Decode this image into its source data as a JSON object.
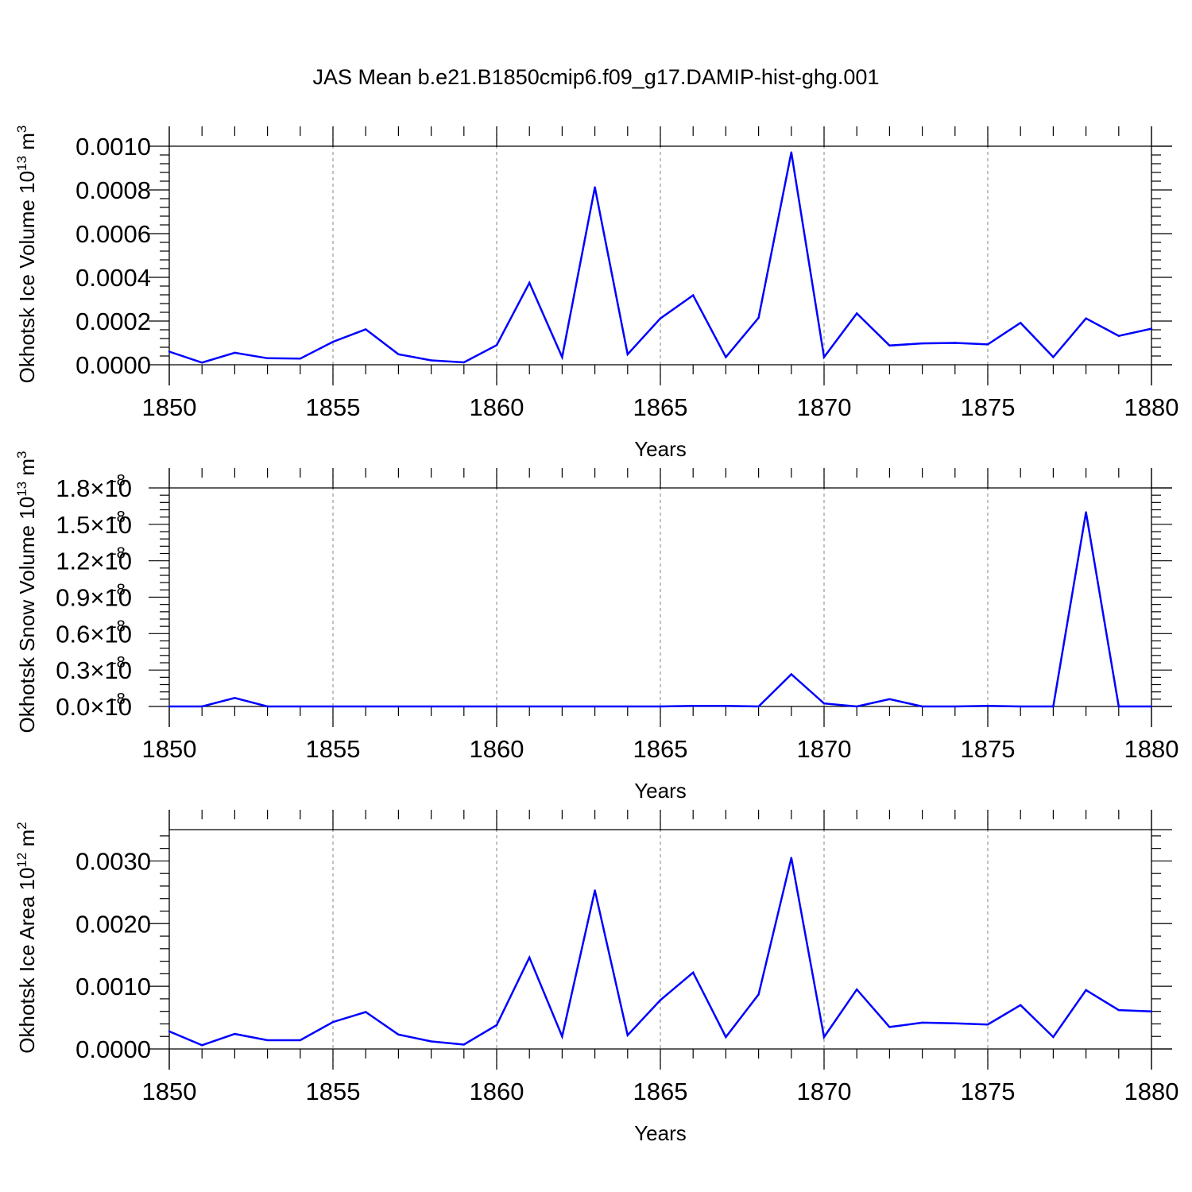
{
  "title": "JAS Mean b.e21.B1850cmip6.f09_g17.DAMIP-hist-ghg.001",
  "colors": {
    "series": "#0000ff",
    "axis": "#000000",
    "grid": "#999999"
  },
  "chart_data": [
    {
      "type": "line",
      "ylabel": "Okhotsk Ice Volume 10",
      "ylabel_exp": "13",
      "ylabel_unit": " m",
      "ylabel_unit_exp": "3",
      "xlabel": "Years",
      "xlim": [
        1850,
        1880
      ],
      "ylim": [
        0.0,
        0.001
      ],
      "y_ticks": [
        0.0,
        0.0002,
        0.0004,
        0.0006,
        0.0008,
        0.001
      ],
      "y_tick_labels": [
        "0.0000",
        "0.0002",
        "0.0004",
        "0.0006",
        "0.0008",
        "0.0010"
      ],
      "x_ticks": [
        1850,
        1855,
        1860,
        1865,
        1870,
        1875,
        1880
      ],
      "x": [
        1850,
        1851,
        1852,
        1853,
        1854,
        1855,
        1856,
        1857,
        1858,
        1859,
        1860,
        1861,
        1862,
        1863,
        1864,
        1865,
        1866,
        1867,
        1868,
        1869,
        1870,
        1871,
        1872,
        1873,
        1874,
        1875,
        1876,
        1877,
        1878,
        1879,
        1880
      ],
      "values": [
        6e-05,
        1e-05,
        5.5e-05,
        3e-05,
        2.8e-05,
        0.000105,
        0.000162,
        4.8e-05,
        2e-05,
        1.1e-05,
        9e-05,
        0.000375,
        3.5e-05,
        0.000812,
        4.8e-05,
        0.000212,
        0.000318,
        3.5e-05,
        0.000215,
        0.000972,
        3.5e-05,
        0.000235,
        8.8e-05,
        9.8e-05,
        0.0001,
        9.3e-05,
        0.000192,
        3.5e-05,
        0.000212,
        0.000132,
        0.000165
      ]
    },
    {
      "type": "line",
      "ylabel": "Okhotsk Snow Volume 10",
      "ylabel_exp": "13",
      "ylabel_unit": " m",
      "ylabel_unit_exp": "3",
      "xlabel": "Years",
      "xlim": [
        1850,
        1880
      ],
      "ylim": [
        0.0,
        1.8e-08
      ],
      "y_ticks": [
        0.0,
        3e-09,
        6e-09,
        9e-09,
        1.2e-08,
        1.5e-08,
        1.8e-08
      ],
      "y_tick_mantissas": [
        "0.0",
        "0.3",
        "0.6",
        "0.9",
        "1.2",
        "1.5",
        "1.8"
      ],
      "y_tick_base": "10",
      "y_tick_exp": "-8",
      "x_ticks": [
        1850,
        1855,
        1860,
        1865,
        1870,
        1875,
        1880
      ],
      "x": [
        1850,
        1851,
        1852,
        1853,
        1854,
        1855,
        1856,
        1857,
        1858,
        1859,
        1860,
        1861,
        1862,
        1863,
        1864,
        1865,
        1866,
        1867,
        1868,
        1869,
        1870,
        1871,
        1872,
        1873,
        1874,
        1875,
        1876,
        1877,
        1878,
        1879,
        1880
      ],
      "values": [
        0,
        0,
        7e-10,
        0,
        0,
        0,
        0,
        0,
        0,
        0,
        0,
        0,
        0,
        0,
        0,
        0,
        5e-11,
        5e-11,
        0,
        2.65e-09,
        2.5e-10,
        0,
        6e-10,
        0,
        0,
        5e-11,
        0,
        0,
        1.6e-08,
        0,
        0
      ]
    },
    {
      "type": "line",
      "ylabel": "Okhotsk Ice Area 10",
      "ylabel_exp": "12",
      "ylabel_unit": " m",
      "ylabel_unit_exp": "2",
      "xlabel": "Years",
      "xlim": [
        1850,
        1880
      ],
      "ylim": [
        0.0,
        0.0035
      ],
      "y_ticks": [
        0.0,
        0.001,
        0.002,
        0.003
      ],
      "y_tick_labels": [
        "0.0000",
        "0.0010",
        "0.0020",
        "0.0030"
      ],
      "x_ticks": [
        1850,
        1855,
        1860,
        1865,
        1870,
        1875,
        1880
      ],
      "x": [
        1850,
        1851,
        1852,
        1853,
        1854,
        1855,
        1856,
        1857,
        1858,
        1859,
        1860,
        1861,
        1862,
        1863,
        1864,
        1865,
        1866,
        1867,
        1868,
        1869,
        1870,
        1871,
        1872,
        1873,
        1874,
        1875,
        1876,
        1877,
        1878,
        1879,
        1880
      ],
      "values": [
        0.00028,
        6e-05,
        0.00024,
        0.00014,
        0.00014,
        0.00043,
        0.00059,
        0.00023,
        0.00012,
        7e-05,
        0.00038,
        0.00146,
        0.0002,
        0.00253,
        0.00022,
        0.00078,
        0.00122,
        0.00019,
        0.00087,
        0.00305,
        0.00019,
        0.00095,
        0.00035,
        0.00042,
        0.00041,
        0.00039,
        0.0007,
        0.00019,
        0.00094,
        0.00062,
        0.0006
      ]
    }
  ]
}
